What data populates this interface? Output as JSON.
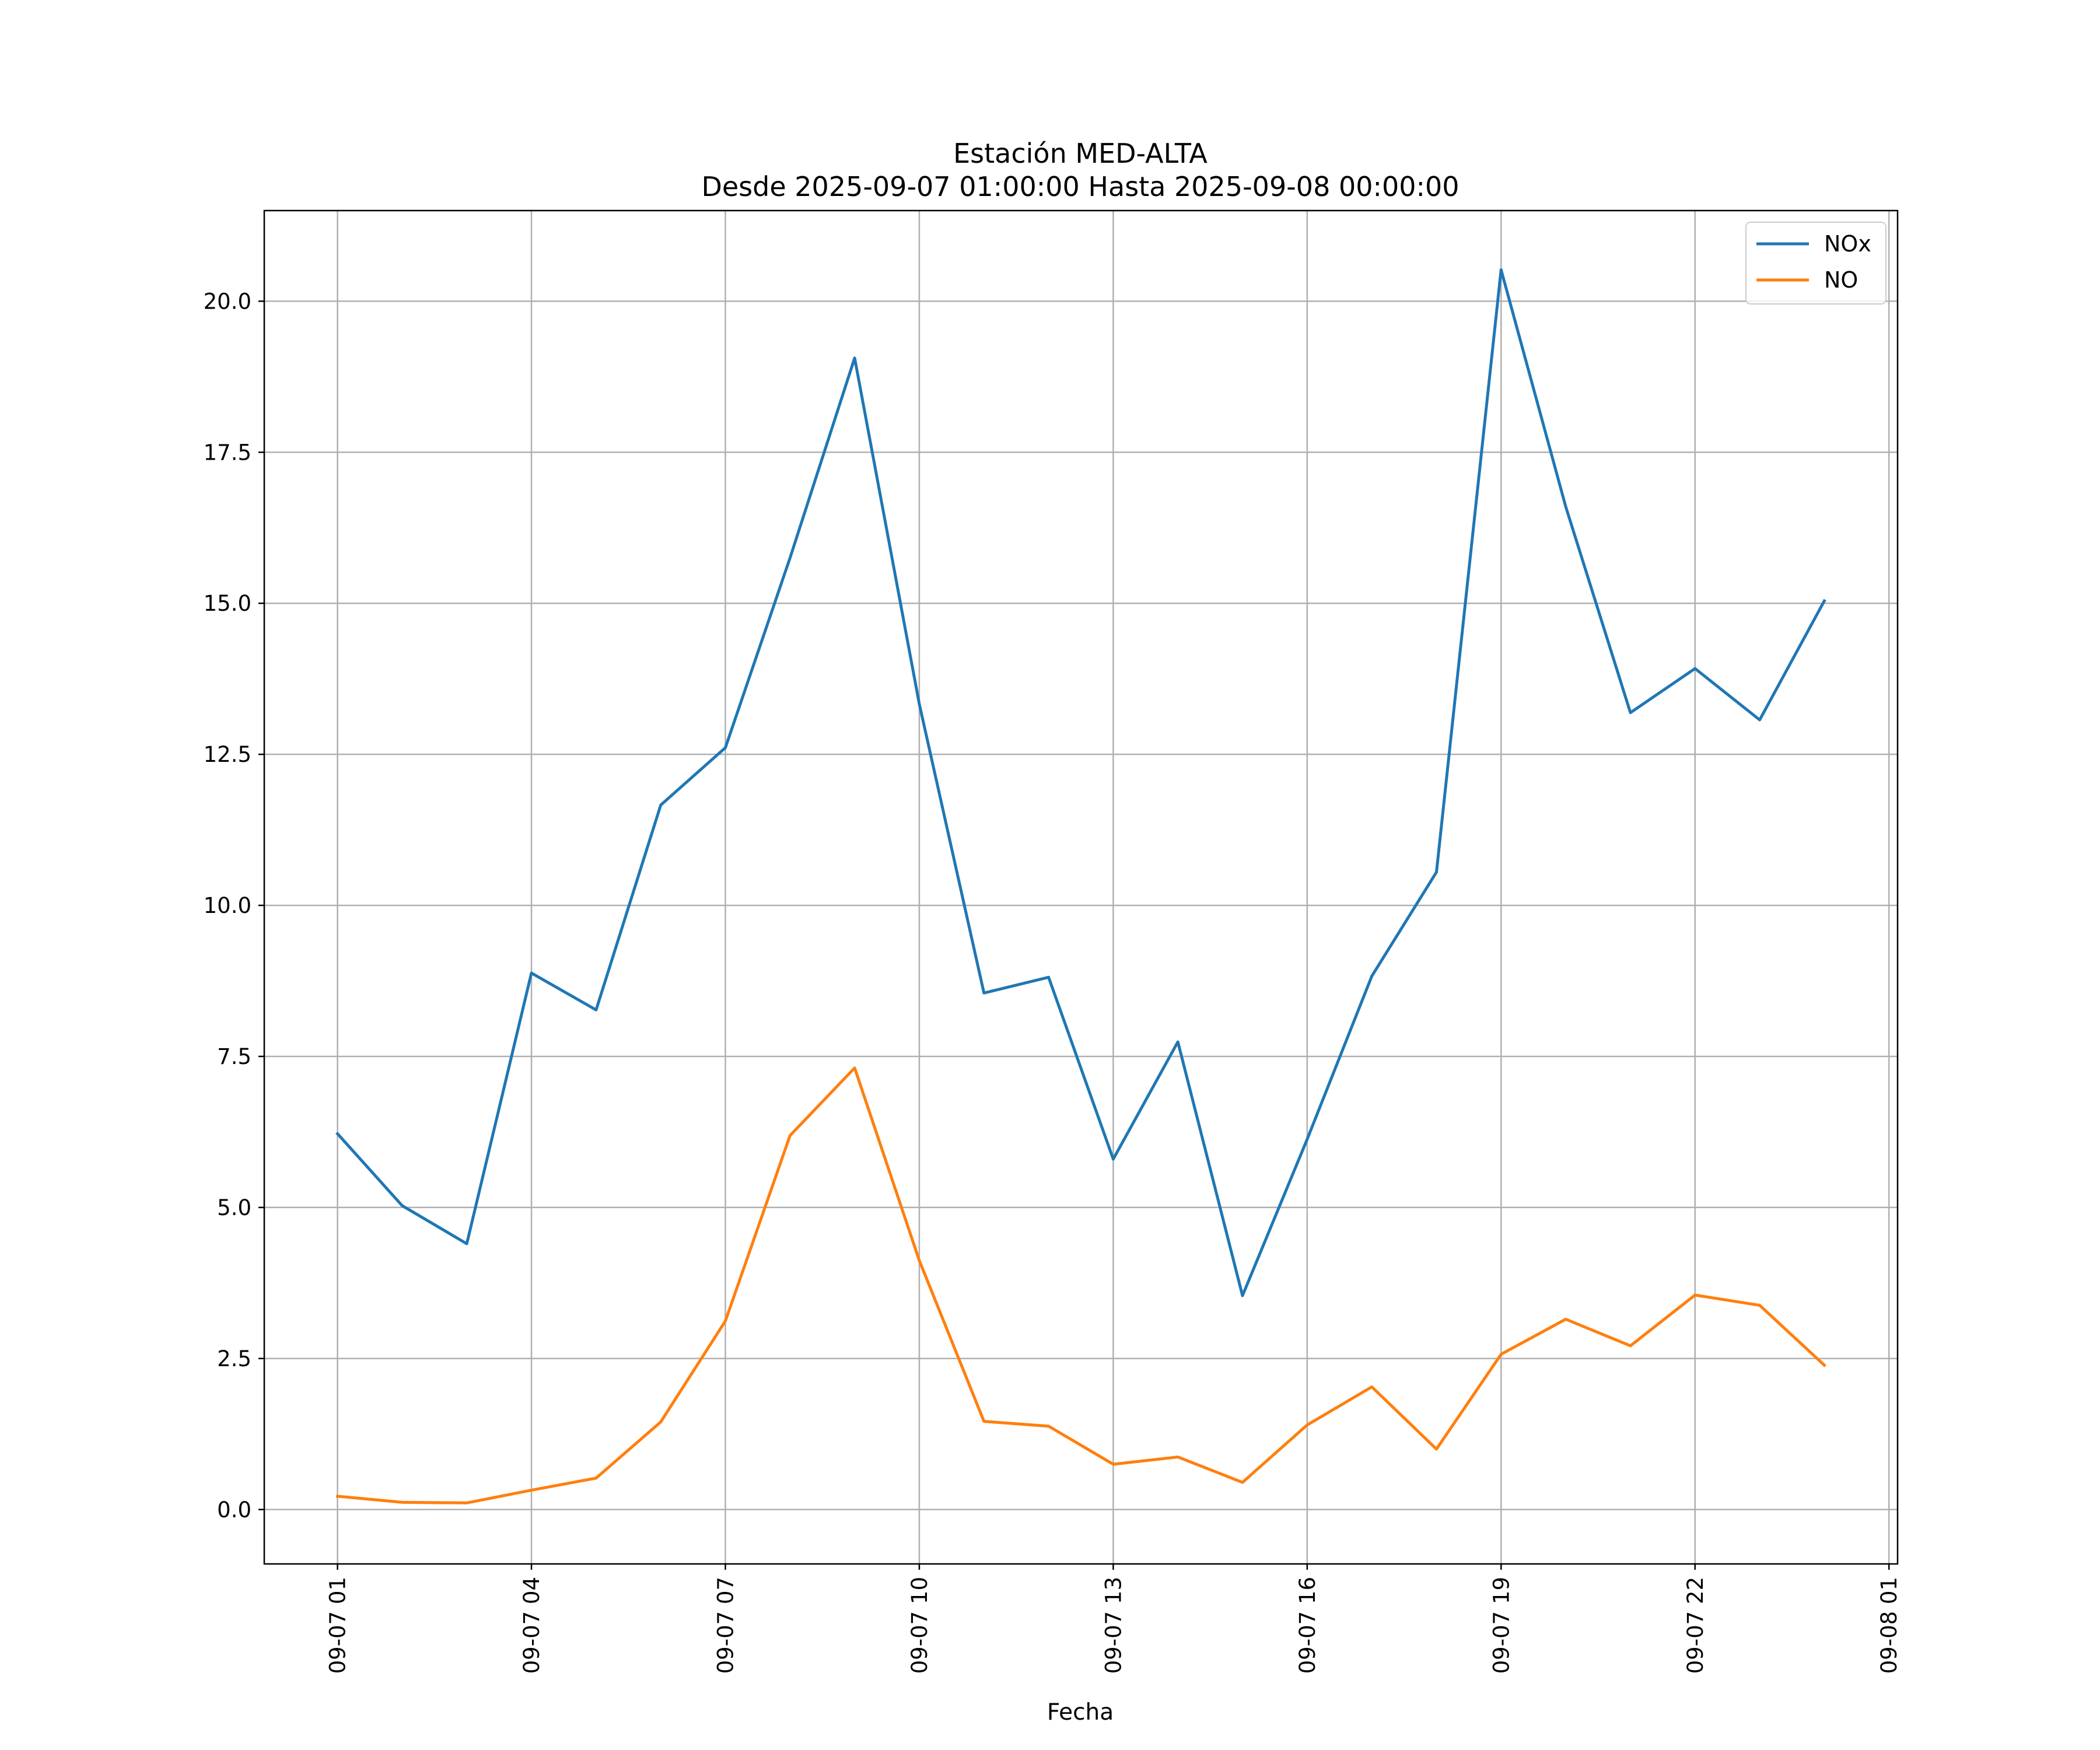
{
  "chart_data": {
    "type": "line",
    "title": "Estación MED-ALTA",
    "subtitle": "Desde 2025-09-07 01:00:00 Hasta 2025-09-08 00:00:00",
    "xlabel": "Fecha",
    "ylabel": "",
    "x": [
      "2025-09-07 01:00",
      "2025-09-07 02:00",
      "2025-09-07 03:00",
      "2025-09-07 04:00",
      "2025-09-07 05:00",
      "2025-09-07 06:00",
      "2025-09-07 07:00",
      "2025-09-07 08:00",
      "2025-09-07 09:00",
      "2025-09-07 10:00",
      "2025-09-07 11:00",
      "2025-09-07 12:00",
      "2025-09-07 13:00",
      "2025-09-07 14:00",
      "2025-09-07 15:00",
      "2025-09-07 16:00",
      "2025-09-07 17:00",
      "2025-09-07 18:00",
      "2025-09-07 19:00",
      "2025-09-07 20:00",
      "2025-09-07 21:00",
      "2025-09-07 22:00",
      "2025-09-07 23:00",
      "2025-09-08 00:00"
    ],
    "series": [
      {
        "name": "NOx",
        "color": "#1f77b4",
        "values": [
          6.22,
          5.03,
          4.4,
          8.88,
          8.27,
          11.66,
          12.61,
          15.75,
          19.06,
          13.33,
          8.55,
          8.81,
          5.8,
          7.74,
          3.54,
          6.13,
          8.83,
          10.55,
          20.52,
          16.6,
          13.19,
          13.92,
          13.07,
          15.04
        ]
      },
      {
        "name": "NO",
        "color": "#ff7f0e",
        "values": [
          0.22,
          0.12,
          0.11,
          0.32,
          0.52,
          1.45,
          3.12,
          6.19,
          7.31,
          4.12,
          1.46,
          1.38,
          0.75,
          0.87,
          0.45,
          1.4,
          2.03,
          1.0,
          2.57,
          3.15,
          2.71,
          3.55,
          3.38,
          2.39
        ]
      }
    ],
    "xticks": [
      "09-07 01",
      "09-07 04",
      "09-07 07",
      "09-07 10",
      "09-07 13",
      "09-07 16",
      "09-07 19",
      "09-07 22",
      "09-08 01"
    ],
    "xlim": [
      "2025-09-06 23:52",
      "2025-09-08 01:08"
    ],
    "yticks": [
      "0.0",
      "2.5",
      "5.0",
      "7.5",
      "10.0",
      "12.5",
      "15.0",
      "17.5",
      "20.0"
    ],
    "ylim": [
      -0.9,
      21.5
    ],
    "grid": true,
    "legend_position": "top-right"
  }
}
